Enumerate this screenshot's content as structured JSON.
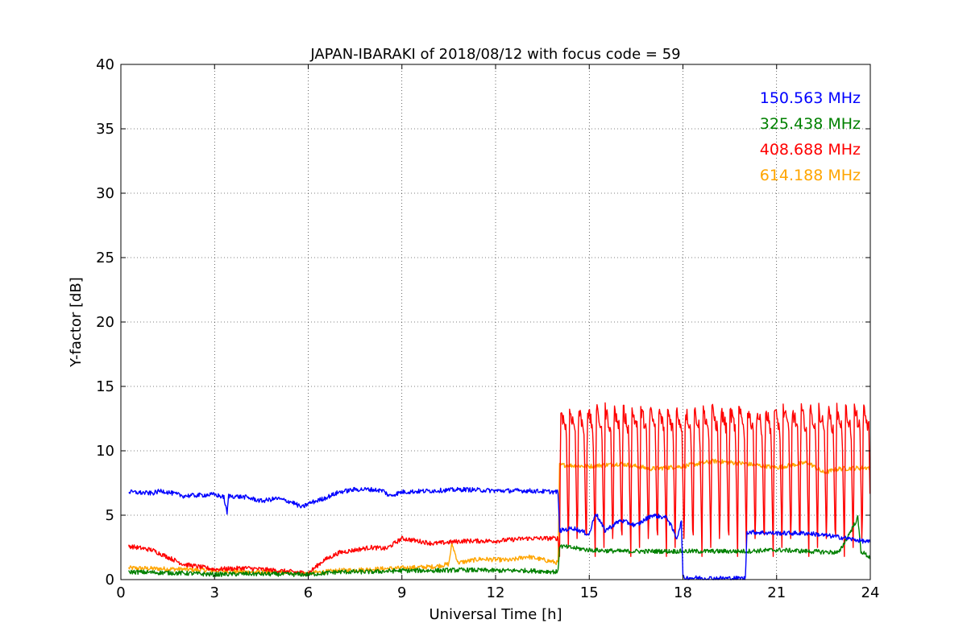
{
  "chart_data": {
    "type": "line",
    "title": "JAPAN-IBARAKI of 2018/08/12 with focus code = 59",
    "xlabel": "Universal Time [h]",
    "ylabel": "Y-factor [dB]",
    "xlim": [
      0,
      24
    ],
    "ylim": [
      0,
      40
    ],
    "xticks": [
      0,
      3,
      6,
      9,
      12,
      15,
      18,
      21,
      24
    ],
    "yticks": [
      0,
      5,
      10,
      15,
      20,
      25,
      30,
      35,
      40
    ],
    "grid": true,
    "legend_placement": "top-right",
    "series": [
      {
        "name": "150.563 MHz",
        "color": "#0000ff",
        "points": [
          [
            0.25,
            6.8
          ],
          [
            1.0,
            6.7
          ],
          [
            1.3,
            6.9
          ],
          [
            2.0,
            6.5
          ],
          [
            3.0,
            6.6
          ],
          [
            3.3,
            6.4
          ],
          [
            3.4,
            5.1
          ],
          [
            3.45,
            6.5
          ],
          [
            4.0,
            6.4
          ],
          [
            4.5,
            6.1
          ],
          [
            5.0,
            6.3
          ],
          [
            5.5,
            6.0
          ],
          [
            5.8,
            5.6
          ],
          [
            6.0,
            5.9
          ],
          [
            6.5,
            6.3
          ],
          [
            7.0,
            6.8
          ],
          [
            7.5,
            7.0
          ],
          [
            8.0,
            7.0
          ],
          [
            8.4,
            6.9
          ],
          [
            8.6,
            6.5
          ],
          [
            9.0,
            6.8
          ],
          [
            10.0,
            6.9
          ],
          [
            11.0,
            7.0
          ],
          [
            12.0,
            6.9
          ],
          [
            13.0,
            6.9
          ],
          [
            14.0,
            6.8
          ],
          [
            14.05,
            3.8
          ],
          [
            14.5,
            4.0
          ],
          [
            15.0,
            3.5
          ],
          [
            15.2,
            5.2
          ],
          [
            15.5,
            3.8
          ],
          [
            16.0,
            4.6
          ],
          [
            16.5,
            4.2
          ],
          [
            17.0,
            5.0
          ],
          [
            17.5,
            4.8
          ],
          [
            17.8,
            3.2
          ],
          [
            17.95,
            4.5
          ],
          [
            18.0,
            0.15
          ],
          [
            19.0,
            0.1
          ],
          [
            20.0,
            0.1
          ],
          [
            20.05,
            3.7
          ],
          [
            21.0,
            3.6
          ],
          [
            22.0,
            3.6
          ],
          [
            23.0,
            3.3
          ],
          [
            24.0,
            2.9
          ]
        ]
      },
      {
        "name": "325.438 MHz",
        "color": "#008000",
        "points": [
          [
            0.25,
            0.6
          ],
          [
            2.0,
            0.5
          ],
          [
            3.0,
            0.4
          ],
          [
            4.0,
            0.45
          ],
          [
            6.0,
            0.4
          ],
          [
            7.0,
            0.6
          ],
          [
            8.0,
            0.6
          ],
          [
            9.0,
            0.7
          ],
          [
            10.0,
            0.7
          ],
          [
            11.0,
            0.75
          ],
          [
            12.0,
            0.7
          ],
          [
            13.0,
            0.7
          ],
          [
            14.0,
            0.6
          ],
          [
            14.05,
            2.6
          ],
          [
            15.0,
            2.3
          ],
          [
            16.0,
            2.2
          ],
          [
            17.0,
            2.2
          ],
          [
            18.0,
            2.2
          ],
          [
            19.0,
            2.2
          ],
          [
            20.0,
            2.2
          ],
          [
            21.0,
            2.3
          ],
          [
            22.0,
            2.2
          ],
          [
            23.0,
            2.1
          ],
          [
            23.6,
            4.8
          ],
          [
            23.7,
            2.2
          ],
          [
            24.0,
            1.7
          ]
        ]
      },
      {
        "name": "408.688 MHz",
        "color": "#ff0000",
        "points": [
          [
            0.25,
            2.6
          ],
          [
            1.0,
            2.3
          ],
          [
            2.0,
            1.2
          ],
          [
            3.0,
            0.8
          ],
          [
            4.0,
            0.9
          ],
          [
            5.0,
            0.7
          ],
          [
            6.0,
            0.5
          ],
          [
            6.5,
            1.5
          ],
          [
            7.0,
            2.1
          ],
          [
            8.0,
            2.5
          ],
          [
            8.5,
            2.4
          ],
          [
            9.0,
            3.2
          ],
          [
            9.5,
            3.0
          ],
          [
            10.0,
            2.8
          ],
          [
            11.0,
            3.0
          ],
          [
            12.0,
            3.0
          ],
          [
            13.0,
            3.2
          ],
          [
            14.0,
            3.2
          ]
        ],
        "oscillation": {
          "start": 14.05,
          "end": 24.0,
          "period": 0.285,
          "high": 13.2,
          "low": 1.8
        }
      },
      {
        "name": "614.188 MHz",
        "color": "#ffa500",
        "points": [
          [
            0.25,
            0.9
          ],
          [
            2.0,
            0.8
          ],
          [
            4.0,
            0.6
          ],
          [
            6.0,
            0.5
          ],
          [
            7.0,
            0.7
          ],
          [
            8.0,
            0.8
          ],
          [
            9.0,
            0.9
          ],
          [
            10.0,
            1.0
          ],
          [
            10.5,
            1.2
          ],
          [
            10.6,
            2.8
          ],
          [
            10.8,
            1.3
          ],
          [
            11.5,
            1.6
          ],
          [
            12.5,
            1.5
          ],
          [
            13.0,
            1.8
          ],
          [
            14.0,
            1.3
          ],
          [
            14.05,
            8.9
          ],
          [
            15.0,
            8.8
          ],
          [
            16.0,
            9.0
          ],
          [
            17.0,
            8.6
          ],
          [
            18.0,
            8.8
          ],
          [
            19.0,
            9.2
          ],
          [
            20.0,
            9.0
          ],
          [
            21.0,
            8.7
          ],
          [
            22.0,
            9.1
          ],
          [
            22.5,
            8.3
          ],
          [
            23.0,
            8.6
          ],
          [
            24.0,
            8.7
          ]
        ]
      }
    ]
  }
}
